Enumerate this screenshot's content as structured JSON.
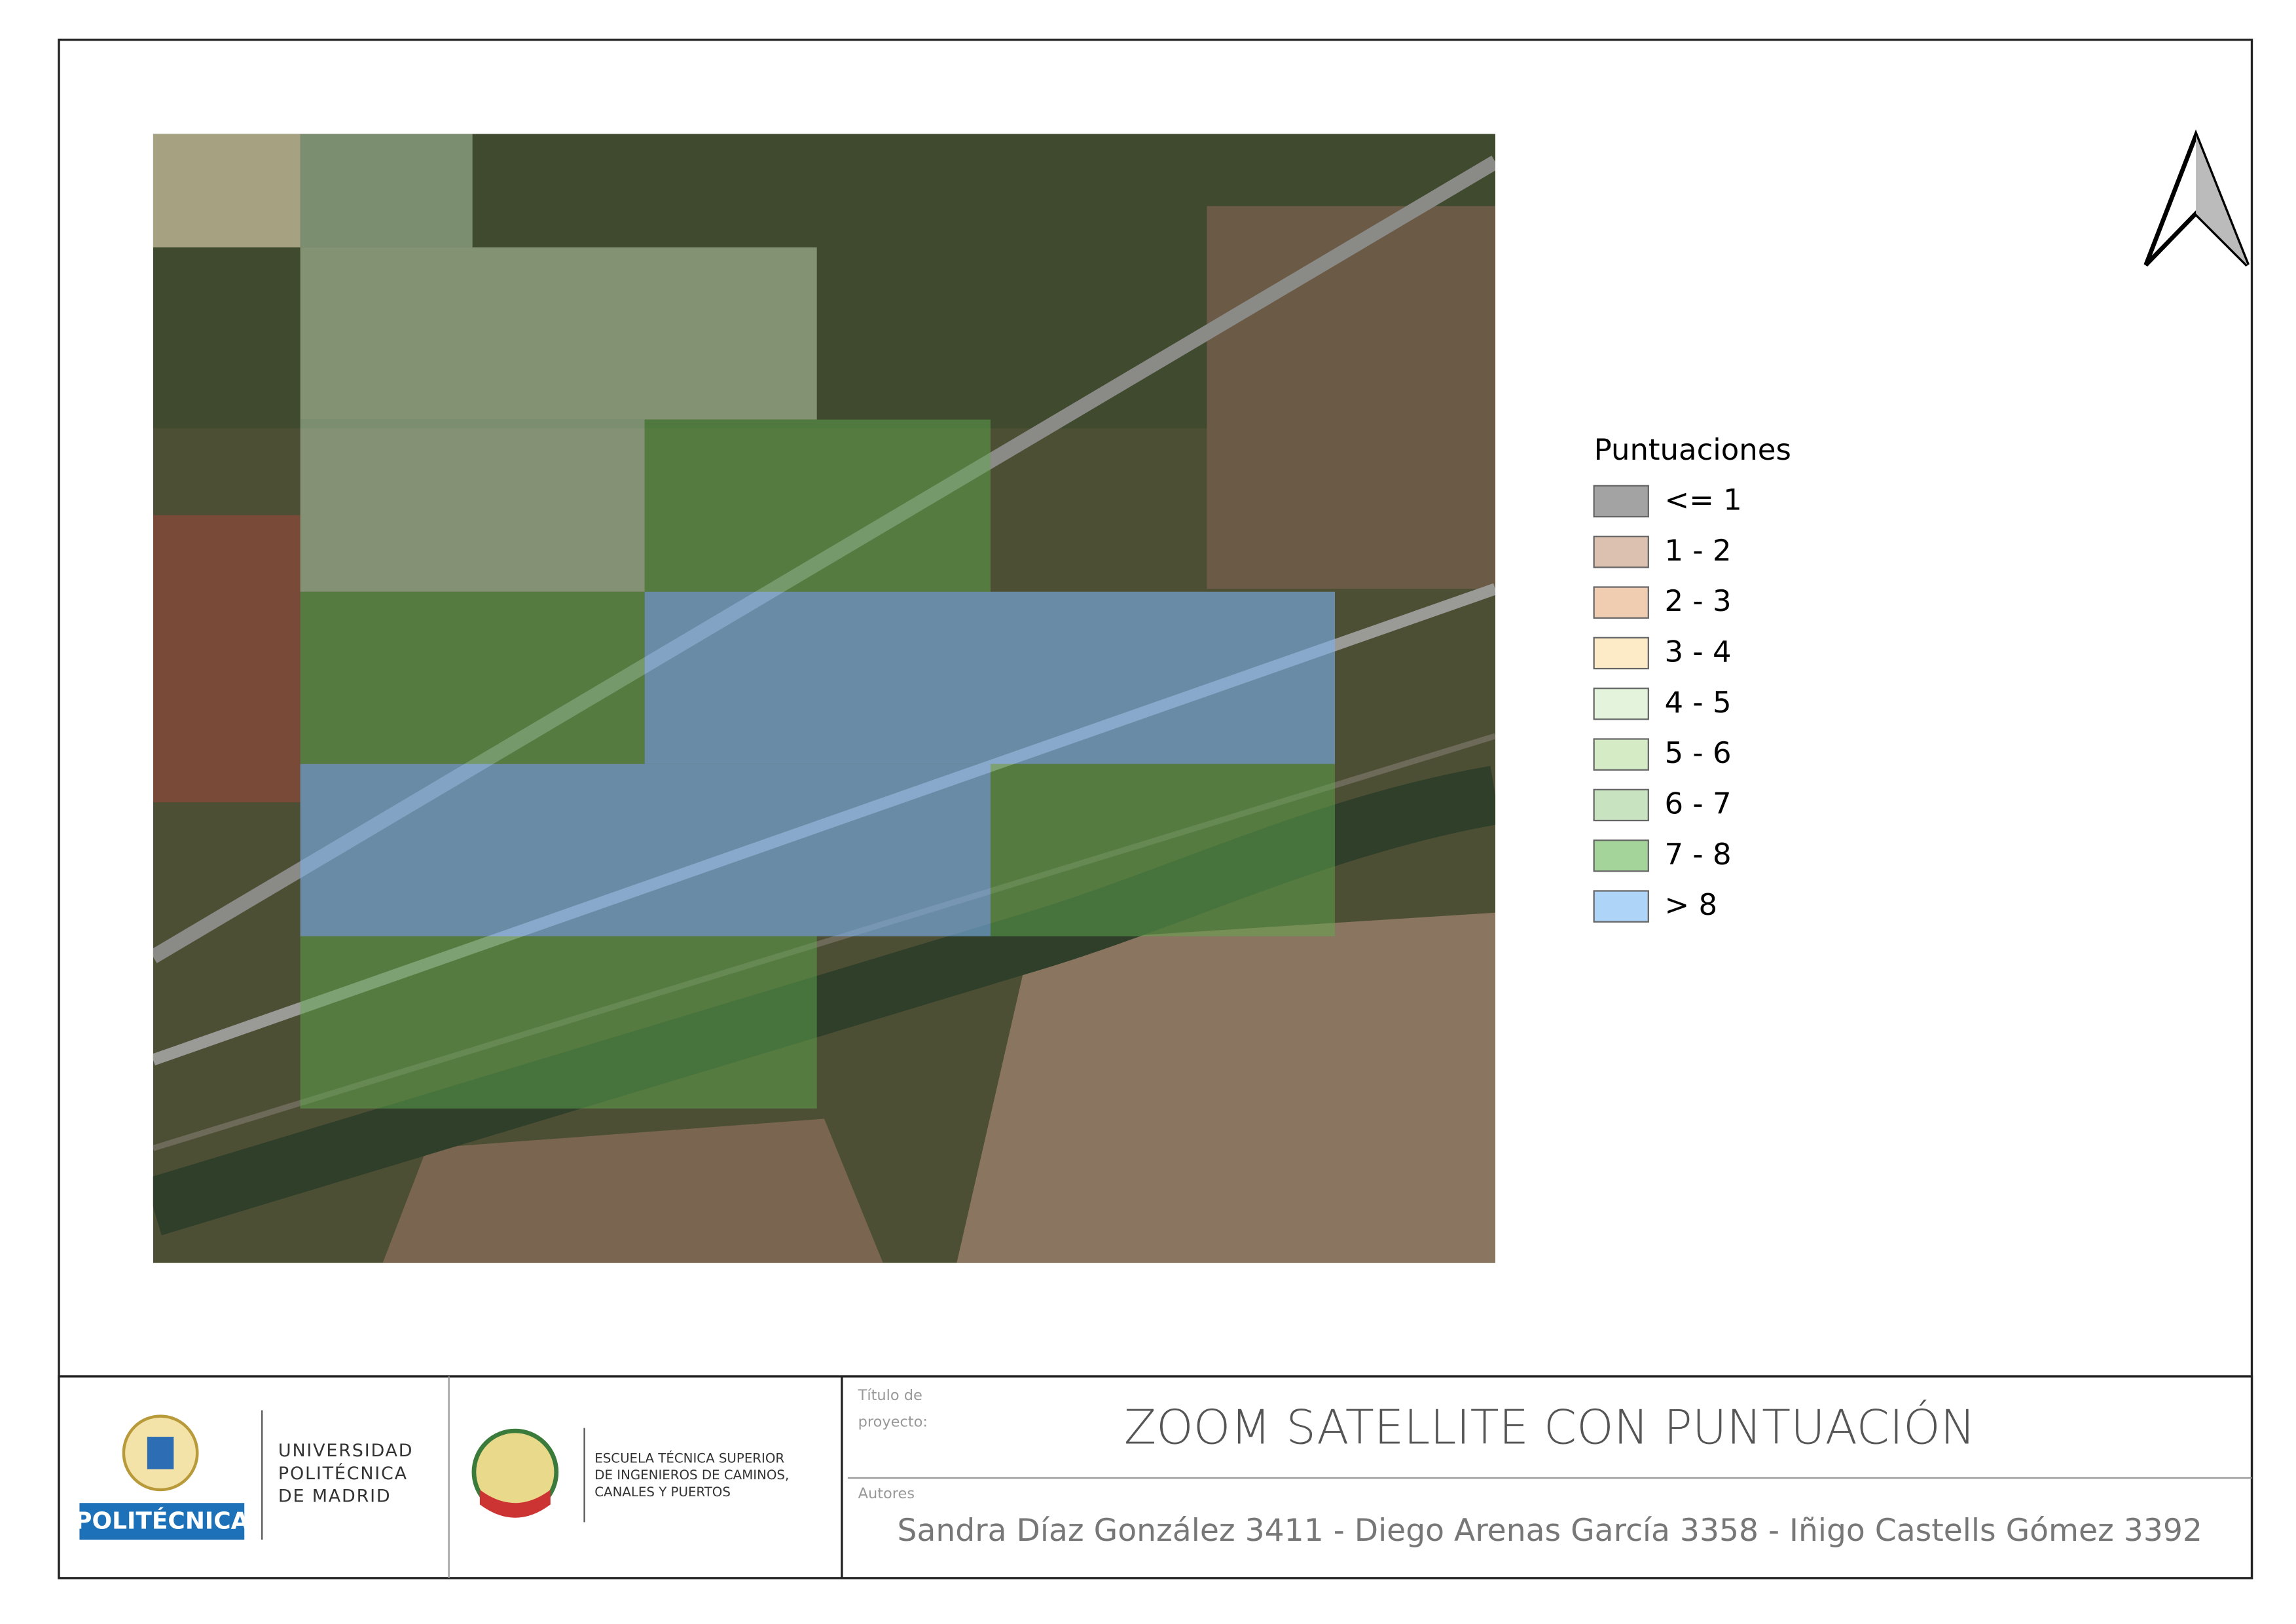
{
  "legend": {
    "title": "Puntuaciones",
    "items": [
      {
        "label": "<= 1",
        "color": "#a3a3a3"
      },
      {
        "label": "1 - 2",
        "color": "#dcc0b0"
      },
      {
        "label": "2 - 3",
        "color": "#f0cdb0"
      },
      {
        "label": "3 - 4",
        "color": "#fcebc6"
      },
      {
        "label": "4 - 5",
        "color": "#e3f3dc"
      },
      {
        "label": "5 - 6",
        "color": "#d5ebc6"
      },
      {
        "label": "6 - 7",
        "color": "#c8e3c0"
      },
      {
        "label": "7 - 8",
        "color": "#a5d49b"
      },
      {
        "label": "> 8",
        "color": "#aed4f7"
      }
    ]
  },
  "title_block": {
    "project_label": "Título de proyecto:",
    "project_title": "ZOOM SATELLITE CON PUNTUACIÓN",
    "authors_label": "Autores",
    "authors": "Sandra Díaz González 3411 - Diego Arenas García 3358 - Iñigo Castells Gómez 3392"
  },
  "logos": {
    "university": [
      "UNIVERSIDAD",
      "POLITÉCNICA",
      "DE MADRID"
    ],
    "university_badge": "POLITÉCNICA",
    "school": [
      "ESCUELA TÉCNICA SUPERIOR",
      "DE INGENIEROS DE CAMINOS,",
      "CANALES Y PUERTOS"
    ]
  }
}
